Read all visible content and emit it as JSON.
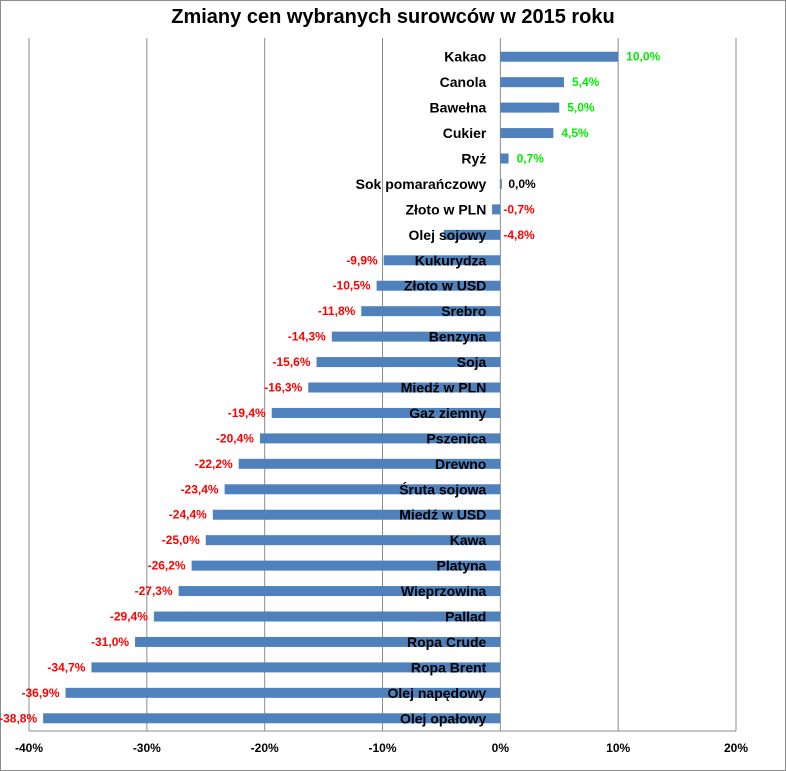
{
  "chart_data": {
    "type": "bar",
    "orientation": "horizontal",
    "title": "Zmiany cen wybranych surowców w 2015 roku",
    "xlabel": "",
    "ylabel": "",
    "xlim": [
      -40,
      20
    ],
    "x_ticks": [
      "-40%",
      "-30%",
      "-20%",
      "-10%",
      "0%",
      "10%",
      "20%"
    ],
    "x_tick_values": [
      -40,
      -30,
      -20,
      -10,
      0,
      10,
      20
    ],
    "grid": "vertical",
    "legend": "none",
    "categories": [
      "Kakao",
      "Canola",
      "Bawełna",
      "Cukier",
      "Ryż",
      "Sok pomarańczowy",
      "Złoto w PLN",
      "Olej sojowy",
      "Kukurydza",
      "Złoto w USD",
      "Srebro",
      "Benzyna",
      "Soja",
      "Miedź w PLN",
      "Gaz ziemny",
      "Pszenica",
      "Drewno",
      "Śruta sojowa",
      "Miedź w USD",
      "Kawa",
      "Platyna",
      "Wieprzowina",
      "Pallad",
      "Ropa Crude",
      "Ropa Brent",
      "Olej napędowy",
      "Olej opałowy"
    ],
    "values": [
      10.0,
      5.4,
      5.0,
      4.5,
      0.7,
      0.0,
      -0.7,
      -4.8,
      -9.9,
      -10.5,
      -11.8,
      -14.3,
      -15.6,
      -16.3,
      -19.4,
      -20.4,
      -22.2,
      -23.4,
      -24.4,
      -25.0,
      -26.2,
      -27.3,
      -29.4,
      -31.0,
      -34.7,
      -36.9,
      -38.8
    ],
    "value_labels": [
      "10,0%",
      "5,4%",
      "5,0%",
      "4,5%",
      "0,7%",
      "0,0%",
      "-0,7%",
      "-4,8%",
      "-9,9%",
      "-10,5%",
      "-11,8%",
      "-14,3%",
      "-15,6%",
      "-16,3%",
      "-19,4%",
      "-20,4%",
      "-22,2%",
      "-23,4%",
      "-24,4%",
      "-25,0%",
      "-26,2%",
      "-27,3%",
      "-29,4%",
      "-31,0%",
      "-34,7%",
      "-36,9%",
      "-38,8%"
    ],
    "colors": {
      "bar": "#4f81bd",
      "positive_label": "#00ee00",
      "negative_label": "#ff0000",
      "zero_label": "#000000",
      "grid": "#8c8c8c"
    }
  }
}
